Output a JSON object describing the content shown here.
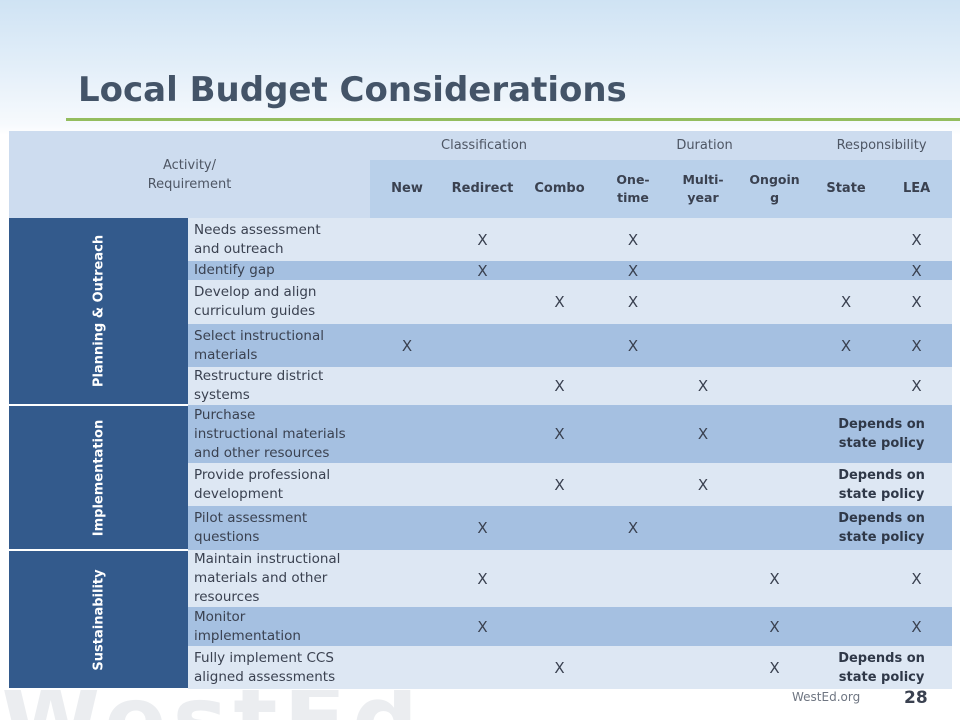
{
  "slide": {
    "title": "Local Budget Considerations",
    "footer_site": "WestEd.org",
    "page_number": "28",
    "background_watermark": "WestEd"
  },
  "table": {
    "header": {
      "activity": "Activity/\nRequirement",
      "groups": [
        "Classification",
        "Duration",
        "Responsibility"
      ],
      "columns": [
        "New",
        "Redirect",
        "Combo",
        "One-\ntime",
        "Multi-\nyear",
        "Ongoin\ng",
        "State",
        "LEA"
      ]
    },
    "phases": [
      {
        "name": "Planning & Outreach",
        "rows": [
          {
            "activity": "Needs assessment\nand outreach",
            "marks": [
              "",
              "X",
              "",
              "X",
              "",
              "",
              "",
              "X"
            ]
          },
          {
            "activity": "Identify gap",
            "marks": [
              "",
              "X",
              "",
              "X",
              "",
              "",
              "",
              "X"
            ]
          },
          {
            "activity": "Develop and align\ncurriculum guides",
            "marks": [
              "",
              "",
              "X",
              "X",
              "",
              "",
              "X",
              "X"
            ]
          },
          {
            "activity": "Select instructional\nmaterials",
            "marks": [
              "X",
              "",
              "",
              "X",
              "",
              "",
              "X",
              "X"
            ]
          },
          {
            "activity": "Restructure district\nsystems",
            "marks": [
              "",
              "",
              "X",
              "",
              "X",
              "",
              "",
              "X"
            ]
          }
        ]
      },
      {
        "name": "Implementation",
        "rows": [
          {
            "activity": "Purchase\ninstructional materials\nand other resources",
            "marks": [
              "",
              "",
              "X",
              "",
              "X",
              ""
            ],
            "responsibility": "Depends on\nstate policy"
          },
          {
            "activity": "Provide professional\ndevelopment",
            "marks": [
              "",
              "",
              "X",
              "",
              "X",
              ""
            ],
            "responsibility": "Depends on\nstate policy"
          },
          {
            "activity": "Pilot assessment\nquestions",
            "marks": [
              "",
              "X",
              "",
              "X",
              "",
              ""
            ],
            "responsibility": "Depends on\nstate policy"
          }
        ]
      },
      {
        "name": "Sustainability",
        "rows": [
          {
            "activity": "Maintain instructional\nmaterials and other\nresources",
            "marks": [
              "",
              "X",
              "",
              "",
              "",
              "X",
              "",
              "X"
            ]
          },
          {
            "activity": "Monitor\nimplementation",
            "marks": [
              "",
              "X",
              "",
              "",
              "",
              "X",
              "",
              "X"
            ]
          },
          {
            "activity": "Fully implement CCS\naligned assessments",
            "marks": [
              "",
              "",
              "X",
              "",
              "",
              "X"
            ],
            "responsibility": "Depends on\nstate policy"
          }
        ]
      }
    ]
  }
}
